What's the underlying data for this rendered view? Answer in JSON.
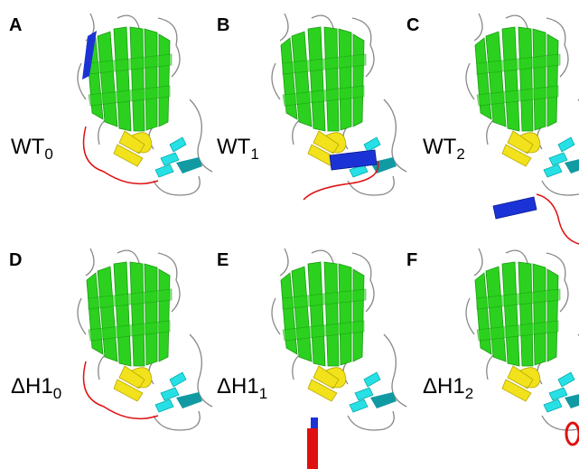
{
  "panels": [
    {
      "letter": "A",
      "label": "WT",
      "subscript": "0"
    },
    {
      "letter": "B",
      "label": "WT",
      "subscript": "1"
    },
    {
      "letter": "C",
      "label": "WT",
      "subscript": "2"
    },
    {
      "letter": "D",
      "label": "ΔH1",
      "subscript": "0"
    },
    {
      "letter": "E",
      "label": "ΔH1",
      "subscript": "1"
    },
    {
      "letter": "F",
      "label": "ΔH1",
      "subscript": "2"
    }
  ]
}
